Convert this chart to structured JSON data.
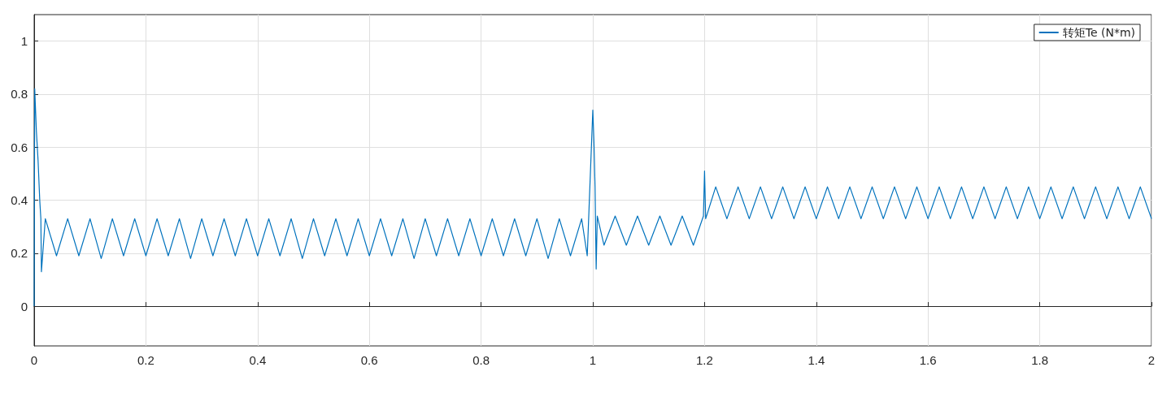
{
  "chart_data": {
    "type": "line",
    "legend": "top right",
    "grid": true,
    "marker": "none",
    "line_style": "solid",
    "xlim": [
      0,
      2
    ],
    "xticks": [
      0,
      0.2,
      0.4,
      0.6,
      0.8,
      1,
      1.2,
      1.4,
      1.6,
      1.8,
      2
    ],
    "ylim": [
      -0.15,
      1.1
    ],
    "yticks": [
      0,
      0.2,
      0.4,
      0.6,
      0.8,
      1
    ],
    "series": [
      {
        "name": "转矩Te (N*m)",
        "color": "#0072bd",
        "x": [
          0,
          0.001,
          0.004,
          0.007,
          0.01,
          0.012,
          0.013,
          0.02,
          0.04,
          0.06,
          0.08,
          0.1,
          0.12,
          0.14,
          0.16,
          0.18,
          0.2,
          0.22,
          0.24,
          0.26,
          0.28,
          0.3,
          0.32,
          0.34,
          0.36,
          0.38,
          0.4,
          0.42,
          0.44,
          0.46,
          0.48,
          0.5,
          0.52,
          0.54,
          0.56,
          0.58,
          0.6,
          0.62,
          0.64,
          0.66,
          0.68,
          0.7,
          0.72,
          0.74,
          0.76,
          0.78,
          0.8,
          0.82,
          0.84,
          0.86,
          0.88,
          0.9,
          0.92,
          0.94,
          0.96,
          0.98,
          0.99,
          1,
          1.002,
          1.004,
          1.006,
          1.008,
          1.02,
          1.04,
          1.06,
          1.08,
          1.1,
          1.12,
          1.14,
          1.16,
          1.18,
          1.198,
          1.2,
          1.202,
          1.22,
          1.24,
          1.26,
          1.28,
          1.3,
          1.32,
          1.34,
          1.36,
          1.38,
          1.4,
          1.42,
          1.44,
          1.46,
          1.48,
          1.5,
          1.52,
          1.54,
          1.56,
          1.58,
          1.6,
          1.62,
          1.64,
          1.66,
          1.68,
          1.7,
          1.72,
          1.74,
          1.76,
          1.78,
          1.8,
          1.82,
          1.84,
          1.86,
          1.88,
          1.9,
          1.92,
          1.94,
          1.96,
          1.98,
          2
        ],
        "values": [
          0,
          0.82,
          0.66,
          0.55,
          0.4,
          0.33,
          0.13,
          0.33,
          0.19,
          0.33,
          0.19,
          0.33,
          0.18,
          0.33,
          0.19,
          0.33,
          0.19,
          0.33,
          0.19,
          0.33,
          0.18,
          0.33,
          0.19,
          0.33,
          0.19,
          0.33,
          0.19,
          0.33,
          0.19,
          0.33,
          0.18,
          0.33,
          0.19,
          0.33,
          0.19,
          0.33,
          0.19,
          0.33,
          0.19,
          0.33,
          0.18,
          0.33,
          0.19,
          0.33,
          0.19,
          0.33,
          0.19,
          0.33,
          0.19,
          0.33,
          0.19,
          0.33,
          0.18,
          0.33,
          0.19,
          0.33,
          0.19,
          0.74,
          0.62,
          0.45,
          0.14,
          0.34,
          0.23,
          0.34,
          0.23,
          0.34,
          0.23,
          0.34,
          0.23,
          0.34,
          0.23,
          0.34,
          0.51,
          0.33,
          0.45,
          0.33,
          0.45,
          0.33,
          0.45,
          0.33,
          0.45,
          0.33,
          0.45,
          0.33,
          0.45,
          0.33,
          0.45,
          0.33,
          0.45,
          0.33,
          0.45,
          0.33,
          0.45,
          0.33,
          0.45,
          0.33,
          0.45,
          0.33,
          0.45,
          0.33,
          0.45,
          0.33,
          0.45,
          0.33,
          0.45,
          0.33,
          0.45,
          0.33,
          0.45,
          0.33,
          0.45,
          0.33,
          0.45,
          0.33
        ]
      }
    ]
  }
}
